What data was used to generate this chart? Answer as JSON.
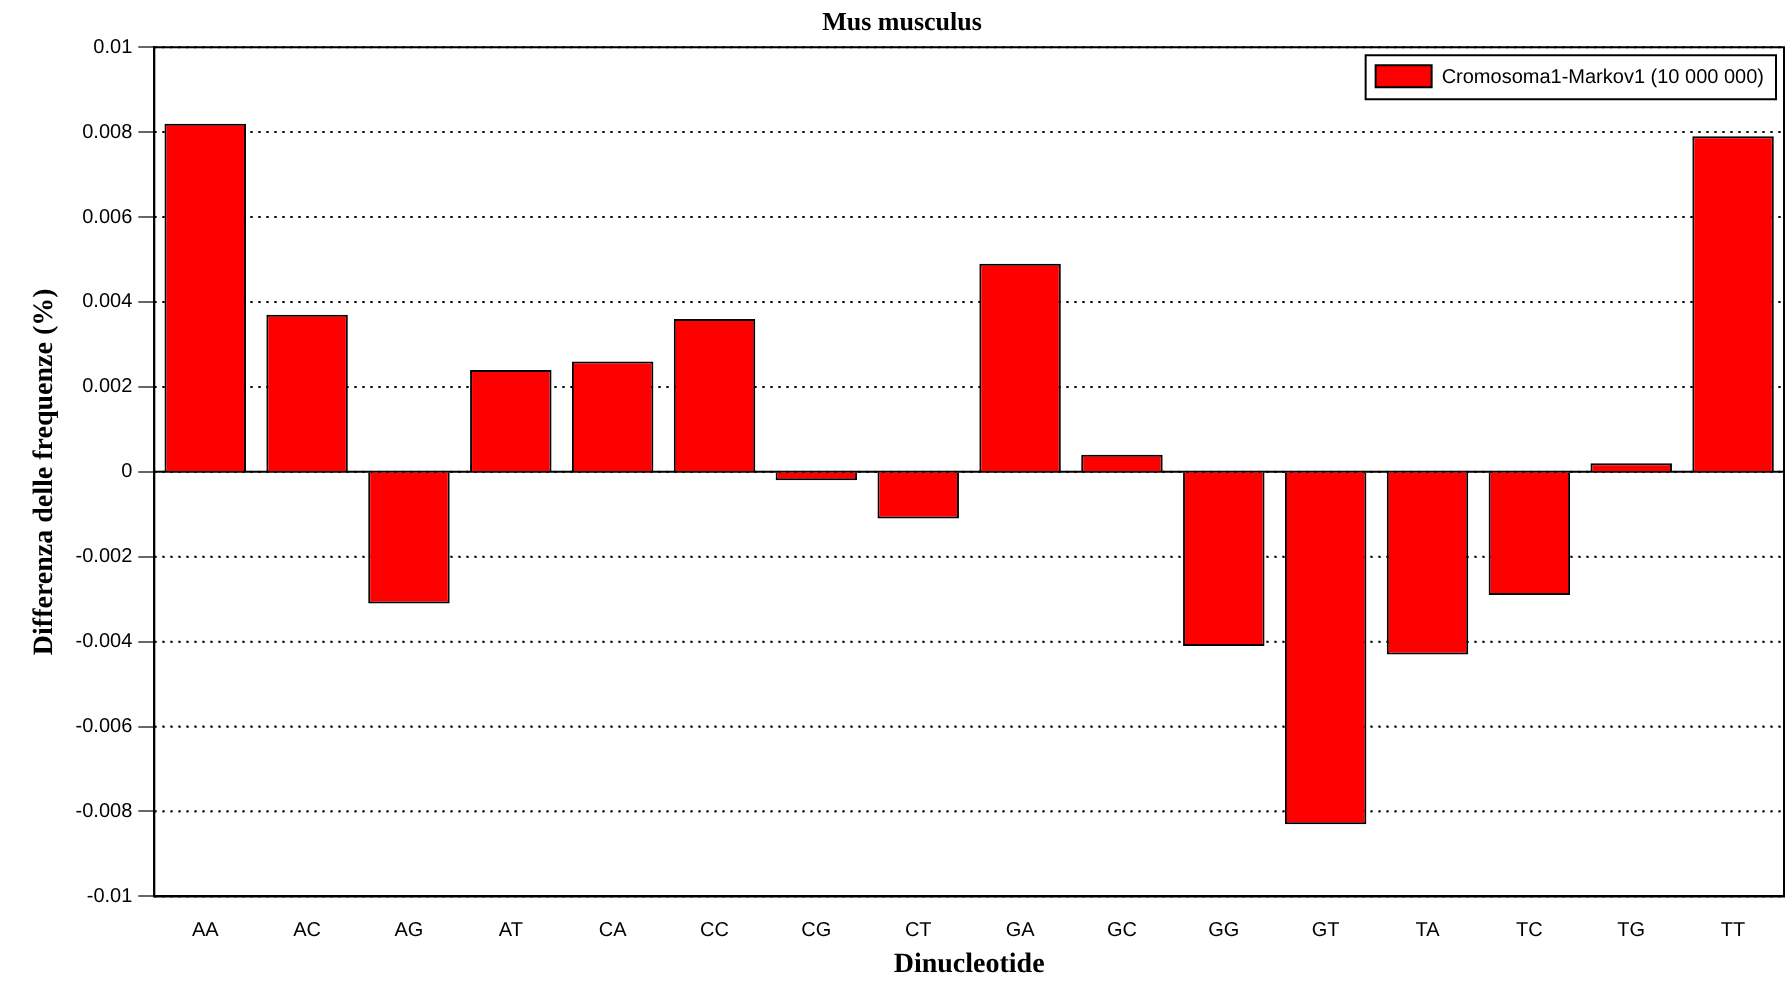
{
  "chart_data": {
    "type": "bar",
    "title": "Mus musculus",
    "xlabel": "Dinucleotide",
    "ylabel": "Differenza delle frequenze (%)",
    "categories": [
      "AA",
      "AC",
      "AG",
      "AT",
      "CA",
      "CC",
      "CG",
      "CT",
      "GA",
      "GC",
      "GG",
      "GT",
      "TA",
      "TC",
      "TG",
      "TT"
    ],
    "series": [
      {
        "name": "Cromosoma1-Markov1 (10 000 000)",
        "color": "#ff0000",
        "values": [
          0.0082,
          0.0037,
          -0.0031,
          0.0024,
          0.0026,
          0.0036,
          -0.0002,
          -0.0011,
          0.0049,
          0.0004,
          -0.0041,
          -0.0083,
          -0.0043,
          -0.0029,
          0.0002,
          0.0079
        ]
      }
    ],
    "ylim": [
      -0.01,
      0.01
    ],
    "yticks": [
      {
        "value": -0.01,
        "label": "-0.01"
      },
      -0.008,
      -0.006,
      -0.004,
      -0.002,
      0,
      0.002,
      0.004,
      0.006,
      0.008,
      {
        "value": 0.01,
        "label": "0.01"
      }
    ],
    "grid": "y",
    "line_style": "dotted",
    "legend": "top right"
  }
}
